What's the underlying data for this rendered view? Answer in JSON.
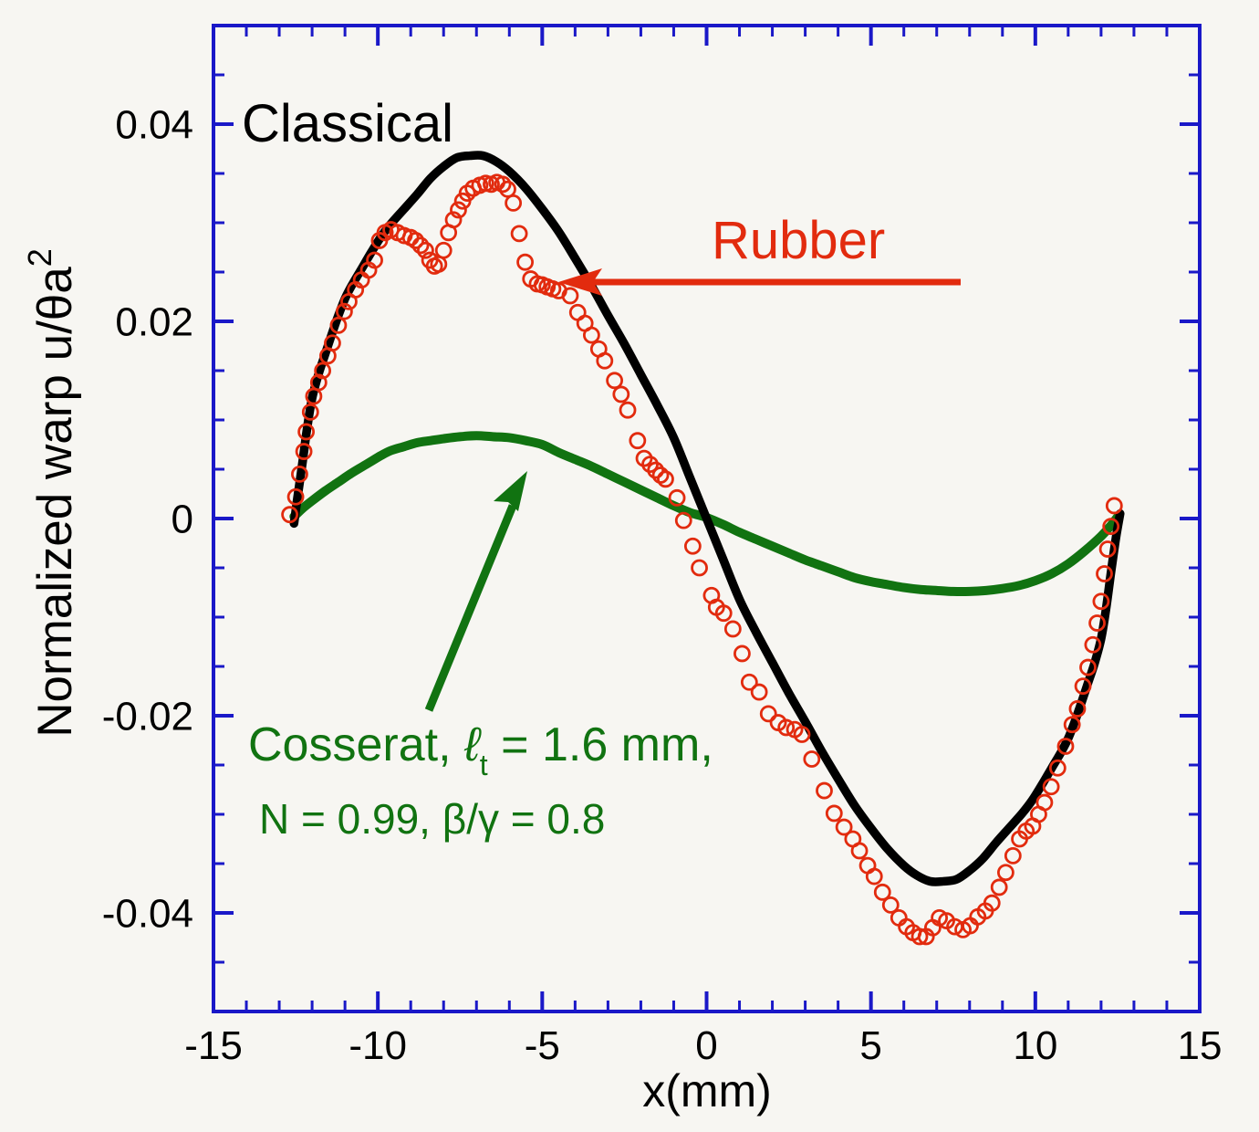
{
  "figure": {
    "background": "#f7f6f2",
    "frame_color": "#1a18c8",
    "text_color": "#000000"
  },
  "axes": {
    "x": {
      "title": "x(mm)",
      "min": -15,
      "max": 15,
      "major_tick_values": [
        -15,
        -10,
        -5,
        0,
        5,
        10,
        15
      ],
      "major_tick_labels": [
        "-15",
        "-10",
        "-5",
        "0",
        "5",
        "10",
        "15"
      ],
      "minor_step": 1
    },
    "y": {
      "title_main": "Normalized warp u/θa",
      "title_superscript": "2",
      "min": -0.05,
      "max": 0.05,
      "major_tick_values": [
        0.04,
        0.02,
        0,
        -0.02,
        -0.04
      ],
      "major_tick_labels": [
        "0.04",
        "0.02",
        "0",
        "-0.02",
        "-0.04"
      ],
      "minor_step": 0.005
    }
  },
  "annotations": {
    "classical": {
      "text": "Classical",
      "color": "#000000"
    },
    "rubber": {
      "text": "Rubber",
      "color": "#e22b0e"
    },
    "cosserat": {
      "line1_prefix": "Cosserat, ",
      "symbol": "ℓ",
      "symbol_sub": "t",
      "line1_suffix": " = 1.6 mm,",
      "line2": "N = 0.99, β/γ = 0.8",
      "color": "#117311"
    }
  },
  "chart_data": {
    "type": "line",
    "title": "",
    "xlabel": "x(mm)",
    "ylabel": "Normalized warp u/θa²",
    "xlim": [
      -15,
      15
    ],
    "ylim": [
      -0.05,
      0.05
    ],
    "grid": false,
    "legend_position": "inline-annotations",
    "series": [
      {
        "name": "Classical",
        "style": "line",
        "color": "#000000",
        "width": 9.5,
        "points": [
          [
            -12.55,
            -0.0005
          ],
          [
            -12.45,
            0.002
          ],
          [
            -12.3,
            0.0055
          ],
          [
            -12.15,
            0.0092
          ],
          [
            -12.0,
            0.0122
          ],
          [
            -11.8,
            0.0147
          ],
          [
            -11.6,
            0.0167
          ],
          [
            -11.4,
            0.0187
          ],
          [
            -11.2,
            0.0206
          ],
          [
            -11.0,
            0.0223
          ],
          [
            -10.8,
            0.0236
          ],
          [
            -10.5,
            0.0253
          ],
          [
            -10.2,
            0.027
          ],
          [
            -9.9,
            0.0286
          ],
          [
            -9.6,
            0.0299
          ],
          [
            -9.2,
            0.0314
          ],
          [
            -8.8,
            0.0329
          ],
          [
            -8.4,
            0.0345
          ],
          [
            -8.0,
            0.0357
          ],
          [
            -7.6,
            0.0366
          ],
          [
            -7.2,
            0.0368
          ],
          [
            -6.8,
            0.0368
          ],
          [
            -6.4,
            0.0362
          ],
          [
            -6.0,
            0.0352
          ],
          [
            -5.5,
            0.0335
          ],
          [
            -5.0,
            0.0314
          ],
          [
            -4.5,
            0.0291
          ],
          [
            -4.0,
            0.0264
          ],
          [
            -3.5,
            0.0236
          ],
          [
            -3.0,
            0.0206
          ],
          [
            -2.5,
            0.0177
          ],
          [
            -2.0,
            0.0146
          ],
          [
            -1.5,
            0.0115
          ],
          [
            -1.0,
            0.0082
          ],
          [
            -0.5,
            0.0041
          ],
          [
            0.0,
            0.0
          ],
          [
            0.5,
            -0.0041
          ],
          [
            1.0,
            -0.0082
          ],
          [
            1.5,
            -0.0115
          ],
          [
            2.0,
            -0.0146
          ],
          [
            2.5,
            -0.0177
          ],
          [
            3.0,
            -0.0206
          ],
          [
            3.5,
            -0.0236
          ],
          [
            4.0,
            -0.0264
          ],
          [
            4.5,
            -0.0291
          ],
          [
            5.0,
            -0.0314
          ],
          [
            5.5,
            -0.0335
          ],
          [
            6.0,
            -0.0352
          ],
          [
            6.4,
            -0.0362
          ],
          [
            6.8,
            -0.0368
          ],
          [
            7.2,
            -0.0368
          ],
          [
            7.6,
            -0.0366
          ],
          [
            8.0,
            -0.0357
          ],
          [
            8.4,
            -0.0345
          ],
          [
            8.8,
            -0.0329
          ],
          [
            9.2,
            -0.0314
          ],
          [
            9.6,
            -0.0299
          ],
          [
            9.9,
            -0.0286
          ],
          [
            10.2,
            -0.027
          ],
          [
            10.5,
            -0.0253
          ],
          [
            10.8,
            -0.0236
          ],
          [
            11.0,
            -0.0223
          ],
          [
            11.2,
            -0.0206
          ],
          [
            11.4,
            -0.0187
          ],
          [
            11.6,
            -0.0167
          ],
          [
            11.8,
            -0.0147
          ],
          [
            12.0,
            -0.0122
          ],
          [
            12.15,
            -0.0092
          ],
          [
            12.3,
            -0.0055
          ],
          [
            12.45,
            -0.002
          ],
          [
            12.58,
            0.0005
          ]
        ]
      },
      {
        "name": "Cosserat, ℓt = 1.6 mm, N = 0.99, β/γ = 0.8",
        "style": "line",
        "color": "#117311",
        "width": 10,
        "points": [
          [
            -12.55,
            0.0002
          ],
          [
            -12.3,
            0.001
          ],
          [
            -12.0,
            0.0018
          ],
          [
            -11.6,
            0.0028
          ],
          [
            -11.2,
            0.0037
          ],
          [
            -10.8,
            0.0046
          ],
          [
            -10.3,
            0.0056
          ],
          [
            -9.9,
            0.0064
          ],
          [
            -9.6,
            0.0069
          ],
          [
            -9.2,
            0.0073
          ],
          [
            -8.8,
            0.0077
          ],
          [
            -8.4,
            0.0079
          ],
          [
            -8.0,
            0.0081
          ],
          [
            -7.5,
            0.0083
          ],
          [
            -7.0,
            0.0084
          ],
          [
            -6.5,
            0.0083
          ],
          [
            -6.0,
            0.0082
          ],
          [
            -5.5,
            0.0079
          ],
          [
            -5.0,
            0.0075
          ],
          [
            -4.5,
            0.0067
          ],
          [
            -4.0,
            0.006
          ],
          [
            -3.5,
            0.0053
          ],
          [
            -3.0,
            0.0045
          ],
          [
            -2.5,
            0.0037
          ],
          [
            -2.0,
            0.0029
          ],
          [
            -1.5,
            0.0021
          ],
          [
            -1.0,
            0.0013
          ],
          [
            -0.5,
            0.0006
          ],
          [
            0.0,
            0.0001
          ],
          [
            0.5,
            -0.0006
          ],
          [
            1.0,
            -0.0014
          ],
          [
            1.5,
            -0.0021
          ],
          [
            2.0,
            -0.0028
          ],
          [
            2.5,
            -0.0035
          ],
          [
            3.0,
            -0.0042
          ],
          [
            3.5,
            -0.0048
          ],
          [
            4.0,
            -0.0054
          ],
          [
            4.5,
            -0.006
          ],
          [
            5.0,
            -0.0064
          ],
          [
            5.5,
            -0.0067
          ],
          [
            6.0,
            -0.007
          ],
          [
            6.5,
            -0.0072
          ],
          [
            7.0,
            -0.0073
          ],
          [
            7.5,
            -0.0074
          ],
          [
            8.0,
            -0.0074
          ],
          [
            8.5,
            -0.0073
          ],
          [
            9.0,
            -0.0071
          ],
          [
            9.5,
            -0.0068
          ],
          [
            10.0,
            -0.0063
          ],
          [
            10.5,
            -0.0056
          ],
          [
            11.0,
            -0.0046
          ],
          [
            11.5,
            -0.0033
          ],
          [
            12.0,
            -0.0018
          ],
          [
            12.3,
            -0.0007
          ],
          [
            12.56,
            0.0004
          ]
        ]
      },
      {
        "name": "Rubber",
        "style": "scatter-open-circle",
        "color": "#e22b0e",
        "radius": 8,
        "stroke_width": 2.8,
        "points": [
          [
            -12.68,
            0.0004
          ],
          [
            -12.5,
            0.0022
          ],
          [
            -12.38,
            0.0045
          ],
          [
            -12.25,
            0.0068
          ],
          [
            -12.18,
            0.0088
          ],
          [
            -12.05,
            0.0108
          ],
          [
            -11.95,
            0.0124
          ],
          [
            -11.8,
            0.0138
          ],
          [
            -11.68,
            0.015
          ],
          [
            -11.52,
            0.0165
          ],
          [
            -11.38,
            0.0178
          ],
          [
            -11.2,
            0.0196
          ],
          [
            -11.02,
            0.021
          ],
          [
            -10.88,
            0.022
          ],
          [
            -10.68,
            0.0232
          ],
          [
            -10.5,
            0.0242
          ],
          [
            -10.28,
            0.0252
          ],
          [
            -10.1,
            0.0262
          ],
          [
            -9.95,
            0.0282
          ],
          [
            -9.78,
            0.029
          ],
          [
            -9.6,
            0.0293
          ],
          [
            -9.4,
            0.029
          ],
          [
            -9.2,
            0.0287
          ],
          [
            -9.0,
            0.0285
          ],
          [
            -8.85,
            0.0282
          ],
          [
            -8.7,
            0.0277
          ],
          [
            -8.55,
            0.0272
          ],
          [
            -8.42,
            0.0262
          ],
          [
            -8.28,
            0.0256
          ],
          [
            -8.15,
            0.0258
          ],
          [
            -8.0,
            0.0272
          ],
          [
            -7.85,
            0.029
          ],
          [
            -7.7,
            0.0303
          ],
          [
            -7.55,
            0.0313
          ],
          [
            -7.42,
            0.0322
          ],
          [
            -7.28,
            0.033
          ],
          [
            -7.1,
            0.0335
          ],
          [
            -6.9,
            0.0338
          ],
          [
            -6.72,
            0.034
          ],
          [
            -6.55,
            0.0339
          ],
          [
            -6.38,
            0.0341
          ],
          [
            -6.2,
            0.0339
          ],
          [
            -6.05,
            0.0334
          ],
          [
            -5.88,
            0.032
          ],
          [
            -5.7,
            0.0289
          ],
          [
            -5.52,
            0.026
          ],
          [
            -5.35,
            0.0243
          ],
          [
            -5.15,
            0.0238
          ],
          [
            -5.0,
            0.0237
          ],
          [
            -4.85,
            0.0235
          ],
          [
            -4.68,
            0.0233
          ],
          [
            -4.5,
            0.0231
          ],
          [
            -4.15,
            0.0226
          ],
          [
            -3.92,
            0.0209
          ],
          [
            -3.7,
            0.0198
          ],
          [
            -3.5,
            0.0186
          ],
          [
            -3.28,
            0.0172
          ],
          [
            -3.1,
            0.016
          ],
          [
            -2.8,
            0.014
          ],
          [
            -2.6,
            0.0126
          ],
          [
            -2.4,
            0.011
          ],
          [
            -2.1,
            0.0079
          ],
          [
            -1.9,
            0.0061
          ],
          [
            -1.72,
            0.0055
          ],
          [
            -1.55,
            0.0049
          ],
          [
            -1.4,
            0.0044
          ],
          [
            -1.25,
            0.004
          ],
          [
            -0.9,
            0.0021
          ],
          [
            -0.7,
            -0.0002
          ],
          [
            -0.42,
            -0.0028
          ],
          [
            -0.22,
            -0.005
          ],
          [
            0.15,
            -0.0078
          ],
          [
            0.3,
            -0.009
          ],
          [
            0.52,
            -0.0096
          ],
          [
            0.8,
            -0.0112
          ],
          [
            1.08,
            -0.0137
          ],
          [
            1.3,
            -0.0166
          ],
          [
            1.6,
            -0.0176
          ],
          [
            1.88,
            -0.0198
          ],
          [
            2.18,
            -0.0207
          ],
          [
            2.42,
            -0.0212
          ],
          [
            2.68,
            -0.0214
          ],
          [
            2.9,
            -0.0219
          ],
          [
            3.2,
            -0.0244
          ],
          [
            3.58,
            -0.0276
          ],
          [
            3.88,
            -0.0299
          ],
          [
            4.18,
            -0.0313
          ],
          [
            4.45,
            -0.0325
          ],
          [
            4.65,
            -0.0337
          ],
          [
            4.9,
            -0.0352
          ],
          [
            5.1,
            -0.0363
          ],
          [
            5.35,
            -0.0379
          ],
          [
            5.6,
            -0.0392
          ],
          [
            5.85,
            -0.0405
          ],
          [
            6.08,
            -0.0414
          ],
          [
            6.28,
            -0.042
          ],
          [
            6.48,
            -0.0424
          ],
          [
            6.68,
            -0.0424
          ],
          [
            6.88,
            -0.0415
          ],
          [
            7.08,
            -0.0405
          ],
          [
            7.3,
            -0.0408
          ],
          [
            7.55,
            -0.0414
          ],
          [
            7.8,
            -0.0417
          ],
          [
            8.02,
            -0.0413
          ],
          [
            8.25,
            -0.0404
          ],
          [
            8.48,
            -0.0398
          ],
          [
            8.68,
            -0.039
          ],
          [
            8.9,
            -0.0374
          ],
          [
            9.1,
            -0.0359
          ],
          [
            9.32,
            -0.0342
          ],
          [
            9.52,
            -0.0325
          ],
          [
            9.72,
            -0.0317
          ],
          [
            9.92,
            -0.0312
          ],
          [
            10.1,
            -0.03
          ],
          [
            10.28,
            -0.0288
          ],
          [
            10.48,
            -0.0272
          ],
          [
            10.68,
            -0.0253
          ],
          [
            10.92,
            -0.0231
          ],
          [
            11.12,
            -0.0209
          ],
          [
            11.28,
            -0.0193
          ],
          [
            11.45,
            -0.017
          ],
          [
            11.6,
            -0.0151
          ],
          [
            11.75,
            -0.0128
          ],
          [
            11.88,
            -0.0106
          ],
          [
            12.0,
            -0.0084
          ],
          [
            12.1,
            -0.0056
          ],
          [
            12.2,
            -0.0031
          ],
          [
            12.3,
            -0.0008
          ],
          [
            12.4,
            0.0013
          ]
        ]
      }
    ]
  }
}
